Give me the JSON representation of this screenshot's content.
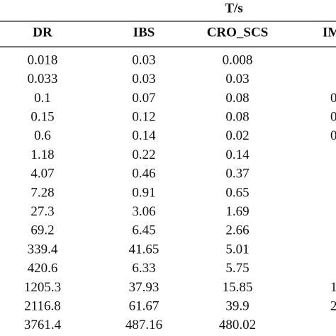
{
  "table": {
    "group_header": "T/s",
    "columns": [
      "DR",
      "IBS",
      "CRO_SCS",
      "IM"
    ],
    "rows": [
      [
        "0.018",
        "0.03",
        "0.008"
      ],
      [
        "0.033",
        "0.03",
        "0.03"
      ],
      [
        "0.1",
        "0.07",
        "0.08",
        "0"
      ],
      [
        "0.15",
        "0.12",
        "0.08",
        "0"
      ],
      [
        "0.6",
        "0.14",
        "0.02",
        "0"
      ],
      [
        "1.18",
        "0.22",
        "0.14"
      ],
      [
        "4.07",
        "0.46",
        "0.37"
      ],
      [
        "7.28",
        "0.91",
        "0.65"
      ],
      [
        "27.3",
        "3.06",
        "1.69"
      ],
      [
        "69.2",
        "6.45",
        "2.66"
      ],
      [
        "339.4",
        "41.65",
        "5.01"
      ],
      [
        "420.6",
        "6.33",
        "5.75"
      ],
      [
        "1205.3",
        "37.93",
        "15.85",
        "1"
      ],
      [
        "2116.8",
        "61.67",
        "39.9",
        "2"
      ],
      [
        "3761.4",
        "487.16",
        "480.02"
      ]
    ]
  }
}
